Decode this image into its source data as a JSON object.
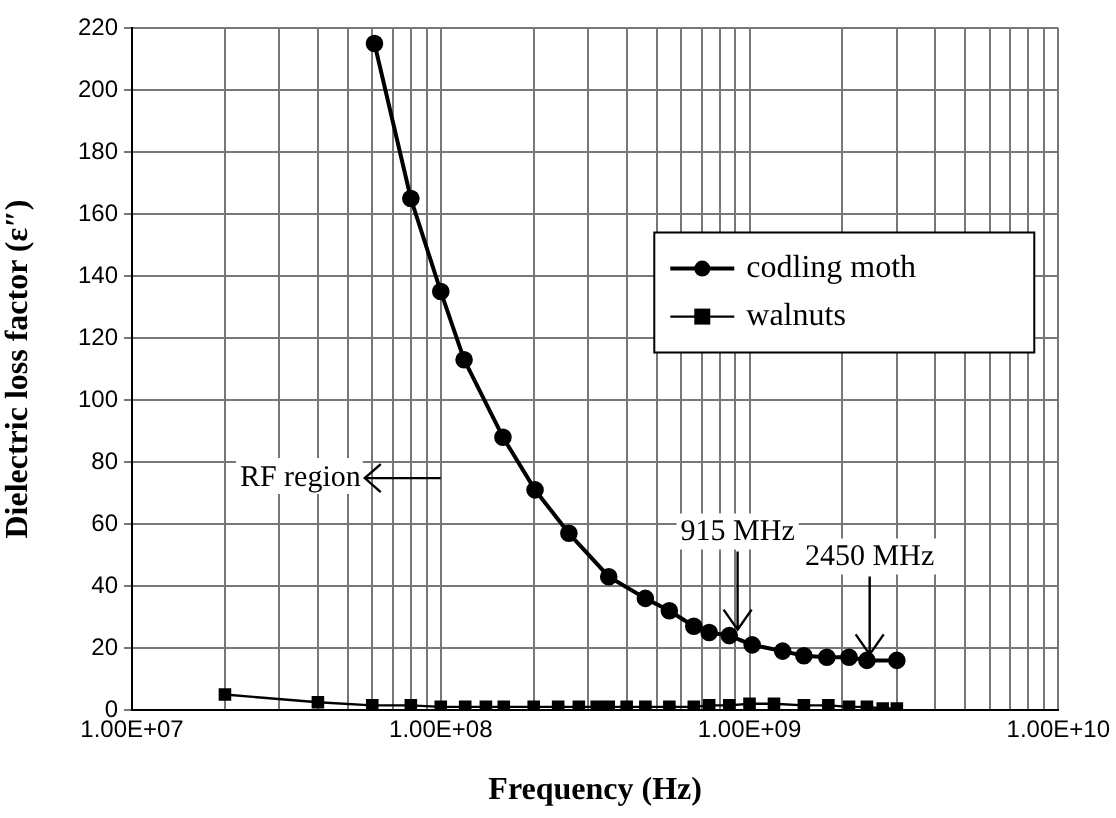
{
  "chart_data": {
    "type": "line",
    "xlabel": "Frequency (Hz)",
    "ylabel": "Dielectric loss factor (ε″)",
    "log": "x",
    "grid": true,
    "legend": "right",
    "xlim": [
      10000000.0,
      10000000000.0
    ],
    "ylim": [
      0,
      220
    ],
    "xticks": [
      {
        "value": 10000000.0,
        "label": "1.00E+07"
      },
      {
        "value": 20000000.0,
        "label": null
      },
      {
        "value": 30000000.0,
        "label": null
      },
      {
        "value": 40000000.0,
        "label": null
      },
      {
        "value": 50000000.0,
        "label": null
      },
      {
        "value": 60000000.0,
        "label": null
      },
      {
        "value": 70000000.0,
        "label": null
      },
      {
        "value": 80000000.0,
        "label": null
      },
      {
        "value": 90000000.0,
        "label": null
      },
      {
        "value": 100000000.0,
        "label": "1.00E+08"
      },
      {
        "value": 200000000.0,
        "label": null
      },
      {
        "value": 300000000.0,
        "label": null
      },
      {
        "value": 400000000.0,
        "label": null
      },
      {
        "value": 500000000.0,
        "label": null
      },
      {
        "value": 600000000.0,
        "label": null
      },
      {
        "value": 700000000.0,
        "label": null
      },
      {
        "value": 800000000.0,
        "label": null
      },
      {
        "value": 900000000.0,
        "label": null
      },
      {
        "value": 1000000000.0,
        "label": "1.00E+09"
      },
      {
        "value": 2000000000.0,
        "label": null
      },
      {
        "value": 3000000000.0,
        "label": null
      },
      {
        "value": 4000000000.0,
        "label": null
      },
      {
        "value": 5000000000.0,
        "label": null
      },
      {
        "value": 6000000000.0,
        "label": null
      },
      {
        "value": 7000000000.0,
        "label": null
      },
      {
        "value": 8000000000.0,
        "label": null
      },
      {
        "value": 9000000000.0,
        "label": null
      },
      {
        "value": 10000000000.0,
        "label": "1.00E+10"
      }
    ],
    "yticks": [
      0,
      20,
      40,
      60,
      80,
      100,
      120,
      140,
      160,
      180,
      200,
      220
    ],
    "series": [
      {
        "name": "codling moth",
        "color": "#000000",
        "marker": "circle",
        "x": [
          61000000.0,
          80000000.0,
          100000000.0,
          119000000.0,
          159000000.0,
          202000000.0,
          260000000.0,
          350000000.0,
          460000000.0,
          550000000.0,
          660000000.0,
          740000000.0,
          860000000.0,
          1020000000.0,
          1280000000.0,
          1500000000.0,
          1780000000.0,
          2100000000.0,
          2400000000.0,
          3000000000.0
        ],
        "values": [
          215,
          165,
          135,
          113,
          88,
          71,
          57,
          43,
          36,
          32,
          27,
          25,
          24,
          21,
          19,
          17.5,
          17,
          17,
          16,
          16
        ]
      },
      {
        "name": "walnuts",
        "color": "#000000",
        "marker": "square",
        "x": [
          20000000.0,
          40000000.0,
          60000000.0,
          80000000.0,
          100000000.0,
          120000000.0,
          140000000.0,
          160000000.0,
          200000000.0,
          240000000.0,
          280000000.0,
          320000000.0,
          350000000.0,
          400000000.0,
          460000000.0,
          550000000.0,
          660000000.0,
          740000000.0,
          860000000.0,
          1000000000.0,
          1200000000.0,
          1500000000.0,
          1800000000.0,
          2100000000.0,
          2400000000.0,
          2700000000.0,
          3000000000.0
        ],
        "values": [
          5,
          2.5,
          1.5,
          1.5,
          1,
          1,
          1,
          1,
          1,
          1,
          1,
          1,
          1,
          1,
          1,
          1,
          1,
          1.5,
          1.5,
          2,
          2,
          1.5,
          1.5,
          1,
          1,
          0.5,
          0.5
        ]
      }
    ],
    "annotations": [
      "RF region",
      {
        "text": "915 MHz",
        "x": 915000000.0,
        "y": 24
      },
      {
        "text": "2450 MHz",
        "x": 2450000000.0,
        "y": 16
      }
    ]
  }
}
